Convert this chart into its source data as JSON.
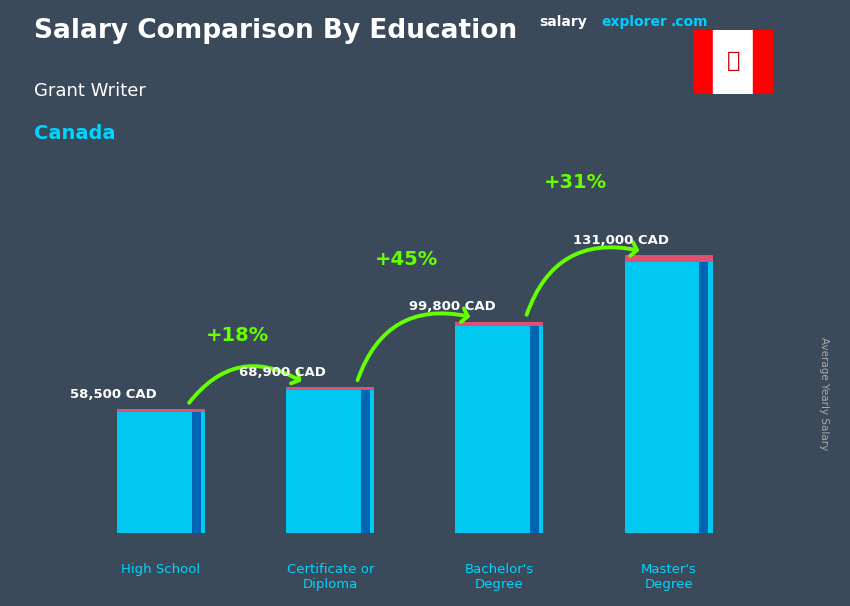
{
  "title": "Salary Comparison By Education",
  "subtitle1": "Grant Writer",
  "subtitle2": "Canada",
  "site_salary": "salary",
  "site_explorer": "explorer",
  "site_com": ".com",
  "ylabel_rotated": "Average Yearly Salary",
  "categories": [
    "High School",
    "Certificate or\nDiploma",
    "Bachelor's\nDegree",
    "Master's\nDegree"
  ],
  "values": [
    58500,
    68900,
    99800,
    131000
  ],
  "value_labels": [
    "58,500 CAD",
    "68,900 CAD",
    "99,800 CAD",
    "131,000 CAD"
  ],
  "pct_labels": [
    "+18%",
    "+45%",
    "+31%"
  ],
  "bar_color": "#00c8f0",
  "bar_dark_side": "#0055aa",
  "bar_top_cap": "#e05070",
  "arrow_color": "#66ff00",
  "title_color": "#ffffff",
  "subtitle1_color": "#ffffff",
  "subtitle2_color": "#00d4ff",
  "value_label_color": "#ffffff",
  "pct_color": "#66ff00",
  "cat_label_color": "#00d4ff",
  "site_color1": "#ffffff",
  "site_color2": "#00ccff",
  "rotated_label_color": "#aaaaaa",
  "bg_color": "#3a4a5a",
  "ylim": [
    0,
    160000
  ],
  "bar_width": 0.52,
  "figsize": [
    8.5,
    6.06
  ],
  "dpi": 100
}
